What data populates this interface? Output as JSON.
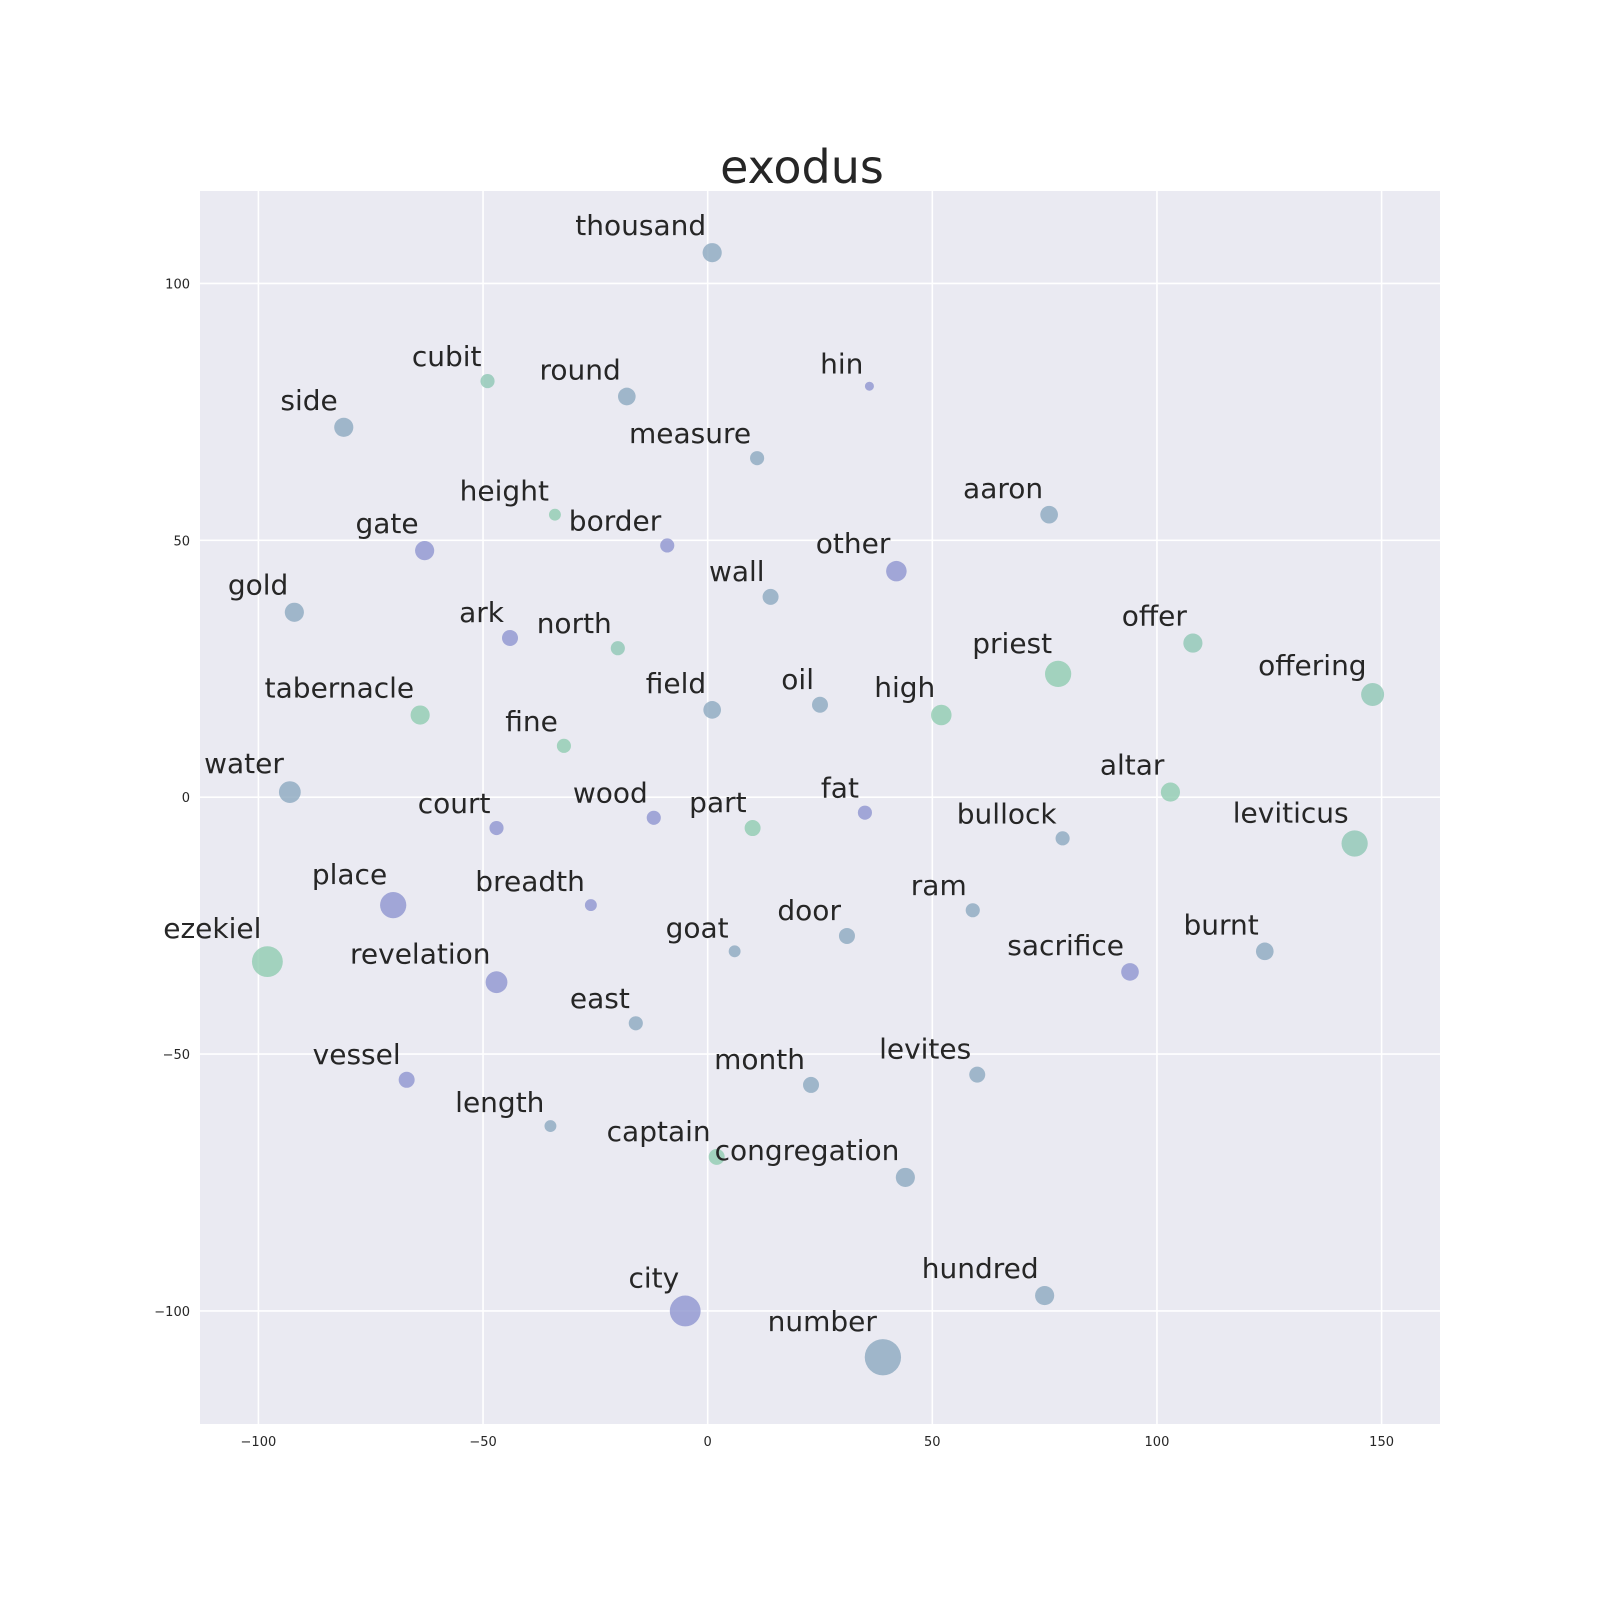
{
  "chart_data": {
    "type": "scatter",
    "title": "exodus",
    "xlabel": "",
    "ylabel": "",
    "xlim": [
      -113,
      163
    ],
    "ylim": [
      -122,
      118
    ],
    "grid": true,
    "legend": "none",
    "xticks": [
      -100,
      -50,
      0,
      50,
      100,
      150
    ],
    "yticks": [
      -100,
      -50,
      0,
      50,
      100
    ],
    "colors": {
      "background": "#EAEAF2",
      "grid": "#FFFFFF",
      "teal": "#8FC7B4",
      "slate": "#8CA9BF",
      "blue": "#8F95CF",
      "green": "#90CCB0"
    },
    "points": [
      {
        "label": "thousand",
        "x": 1,
        "y": 106,
        "size": 6,
        "color": "slate"
      },
      {
        "label": "cubit",
        "x": -49,
        "y": 81,
        "size": 3,
        "color": "teal"
      },
      {
        "label": "round",
        "x": -18,
        "y": 78,
        "size": 5,
        "color": "slate"
      },
      {
        "label": "hin",
        "x": 36,
        "y": 80,
        "size": 1,
        "color": "blue"
      },
      {
        "label": "side",
        "x": -81,
        "y": 72,
        "size": 6,
        "color": "slate"
      },
      {
        "label": "measure",
        "x": 11,
        "y": 66,
        "size": 3,
        "color": "slate"
      },
      {
        "label": "height",
        "x": -34,
        "y": 55,
        "size": 2,
        "color": "green"
      },
      {
        "label": "aaron",
        "x": 76,
        "y": 55,
        "size": 5,
        "color": "slate"
      },
      {
        "label": "gate",
        "x": -63,
        "y": 48,
        "size": 6,
        "color": "blue"
      },
      {
        "label": "border",
        "x": -9,
        "y": 49,
        "size": 3,
        "color": "blue"
      },
      {
        "label": "other",
        "x": 42,
        "y": 44,
        "size": 7,
        "color": "blue"
      },
      {
        "label": "wall",
        "x": 14,
        "y": 39,
        "size": 4,
        "color": "slate"
      },
      {
        "label": "gold",
        "x": -92,
        "y": 36,
        "size": 6,
        "color": "slate"
      },
      {
        "label": "ark",
        "x": -44,
        "y": 31,
        "size": 4,
        "color": "blue"
      },
      {
        "label": "north",
        "x": -20,
        "y": 29,
        "size": 3,
        "color": "teal"
      },
      {
        "label": "offer",
        "x": 108,
        "y": 30,
        "size": 6,
        "color": "teal"
      },
      {
        "label": "priest",
        "x": 78,
        "y": 24,
        "size": 12,
        "color": "green"
      },
      {
        "label": "offering",
        "x": 148,
        "y": 20,
        "size": 9,
        "color": "teal"
      },
      {
        "label": "tabernacle",
        "x": -64,
        "y": 16,
        "size": 6,
        "color": "green"
      },
      {
        "label": "field",
        "x": 1,
        "y": 17,
        "size": 5,
        "color": "slate"
      },
      {
        "label": "oil",
        "x": 25,
        "y": 18,
        "size": 4,
        "color": "slate"
      },
      {
        "label": "high",
        "x": 52,
        "y": 16,
        "size": 7,
        "color": "green"
      },
      {
        "label": "fine",
        "x": -32,
        "y": 10,
        "size": 3,
        "color": "green"
      },
      {
        "label": "water",
        "x": -93,
        "y": 1,
        "size": 8,
        "color": "slate"
      },
      {
        "label": "altar",
        "x": 103,
        "y": 1,
        "size": 6,
        "color": "green"
      },
      {
        "label": "court",
        "x": -47,
        "y": -6,
        "size": 3,
        "color": "blue"
      },
      {
        "label": "wood",
        "x": -12,
        "y": -4,
        "size": 3,
        "color": "blue"
      },
      {
        "label": "part",
        "x": 10,
        "y": -6,
        "size": 4,
        "color": "green"
      },
      {
        "label": "fat",
        "x": 35,
        "y": -3,
        "size": 3,
        "color": "blue"
      },
      {
        "label": "bullock",
        "x": 79,
        "y": -8,
        "size": 3,
        "color": "slate"
      },
      {
        "label": "leviticus",
        "x": 144,
        "y": -9,
        "size": 12,
        "color": "teal"
      },
      {
        "label": "place",
        "x": -70,
        "y": -21,
        "size": 12,
        "color": "blue"
      },
      {
        "label": "breadth",
        "x": -26,
        "y": -21,
        "size": 2,
        "color": "blue"
      },
      {
        "label": "ram",
        "x": 59,
        "y": -22,
        "size": 3,
        "color": "slate"
      },
      {
        "label": "ezekiel",
        "x": -98,
        "y": -32,
        "size": 17,
        "color": "green"
      },
      {
        "label": "door",
        "x": 31,
        "y": -27,
        "size": 4,
        "color": "slate"
      },
      {
        "label": "goat",
        "x": 6,
        "y": -30,
        "size": 2,
        "color": "slate"
      },
      {
        "label": "burnt",
        "x": 124,
        "y": -30,
        "size": 5,
        "color": "slate"
      },
      {
        "label": "revelation",
        "x": -47,
        "y": -36,
        "size": 8,
        "color": "blue"
      },
      {
        "label": "sacrifice",
        "x": 94,
        "y": -34,
        "size": 5,
        "color": "blue"
      },
      {
        "label": "east",
        "x": -16,
        "y": -44,
        "size": 3,
        "color": "slate"
      },
      {
        "label": "vessel",
        "x": -67,
        "y": -55,
        "size": 4,
        "color": "blue"
      },
      {
        "label": "month",
        "x": 23,
        "y": -56,
        "size": 4,
        "color": "slate"
      },
      {
        "label": "levites",
        "x": 60,
        "y": -54,
        "size": 4,
        "color": "slate"
      },
      {
        "label": "length",
        "x": -35,
        "y": -64,
        "size": 2,
        "color": "slate"
      },
      {
        "label": "captain",
        "x": 2,
        "y": -70,
        "size": 4,
        "color": "green"
      },
      {
        "label": "congregation",
        "x": 44,
        "y": -74,
        "size": 6,
        "color": "slate"
      },
      {
        "label": "hundred",
        "x": 75,
        "y": -97,
        "size": 6,
        "color": "slate"
      },
      {
        "label": "city",
        "x": -5,
        "y": -100,
        "size": 17,
        "color": "blue"
      },
      {
        "label": "number",
        "x": 39,
        "y": -109,
        "size": 24,
        "color": "slate"
      }
    ]
  }
}
